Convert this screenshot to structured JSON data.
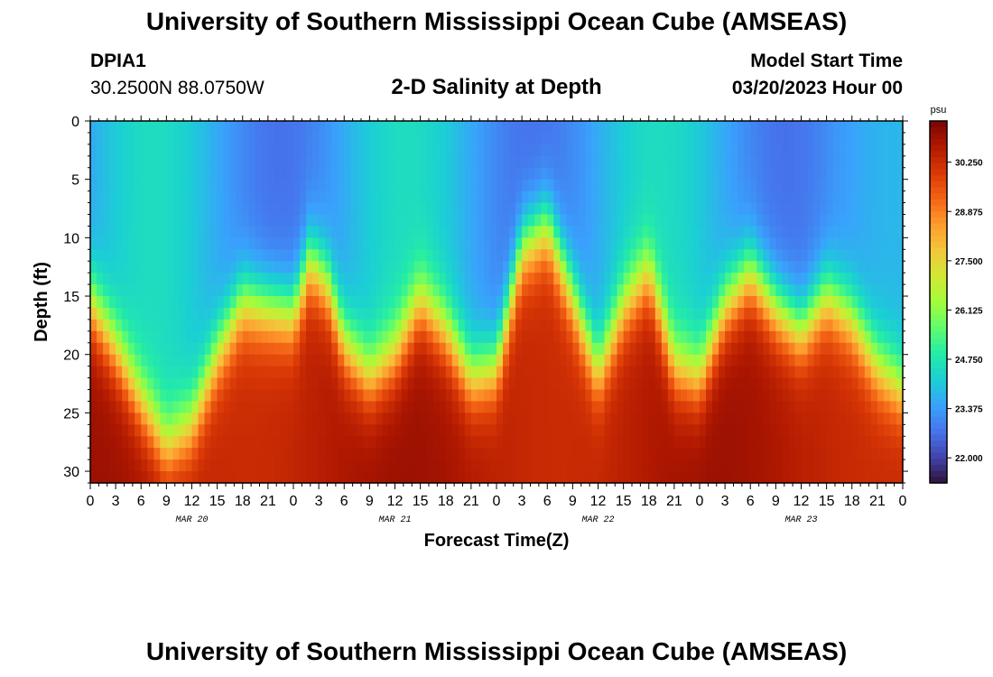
{
  "header": {
    "title": "University of Southern Mississippi Ocean Cube (AMSEAS)",
    "station_id": "DPIA1",
    "station_coords": "30.2500N  88.0750W",
    "plot_title": "2-D Salinity at Depth",
    "model_start_label": "Model Start Time",
    "model_start_value": "03/20/2023 Hour 00"
  },
  "footer": {
    "title": "University of Southern Mississippi Ocean Cube (AMSEAS)"
  },
  "chart_data": {
    "type": "heatmap",
    "title": "2-D Salinity at Depth",
    "xlabel": "Forecast Time(Z)",
    "ylabel": "Depth (ft)",
    "x_tick_labels": [
      "0",
      "3",
      "6",
      "9",
      "12",
      "15",
      "18",
      "21",
      "0",
      "3",
      "6",
      "9",
      "12",
      "15",
      "18",
      "21",
      "0",
      "3",
      "6",
      "9",
      "12",
      "15",
      "18",
      "21",
      "0",
      "3",
      "6",
      "9",
      "12",
      "15",
      "18",
      "21",
      "0"
    ],
    "date_labels": [
      {
        "label": "MAR 20",
        "hour": 12
      },
      {
        "label": "MAR 21",
        "hour": 36
      },
      {
        "label": "MAR 22",
        "hour": 60
      },
      {
        "label": "MAR 23",
        "hour": 84
      }
    ],
    "xlim_hours": [
      0,
      96
    ],
    "y_ticks": [
      0,
      5,
      10,
      15,
      20,
      25,
      30
    ],
    "ylim_ft": [
      0,
      31
    ],
    "colorbar": {
      "unit": "psu",
      "ticks": [
        "30.250",
        "28.875",
        "27.500",
        "26.125",
        "24.750",
        "23.375",
        "22.000"
      ],
      "range": [
        21.3,
        31.4
      ],
      "colors": [
        "#30123b",
        "#4145ab",
        "#4675ed",
        "#39a2fc",
        "#1bcfd4",
        "#24eca6",
        "#61fc6c",
        "#a4fc3b",
        "#d1e834",
        "#f3c63a",
        "#fe9b2d",
        "#f36315",
        "#d93806",
        "#b11901",
        "#7a0403"
      ]
    },
    "halocline_depth_ft": [
      {
        "hour": 0,
        "depth": 15.5
      },
      {
        "hour": 3,
        "depth": 19.5
      },
      {
        "hour": 6,
        "depth": 24
      },
      {
        "hour": 9,
        "depth": 28
      },
      {
        "hour": 12,
        "depth": 26
      },
      {
        "hour": 15,
        "depth": 20
      },
      {
        "hour": 18,
        "depth": 15.5
      },
      {
        "hour": 21,
        "depth": 16
      },
      {
        "hour": 24,
        "depth": 16.5
      },
      {
        "hour": 26,
        "depth": 12
      },
      {
        "hour": 28,
        "depth": 14
      },
      {
        "hour": 30,
        "depth": 19
      },
      {
        "hour": 33,
        "depth": 22
      },
      {
        "hour": 36,
        "depth": 20
      },
      {
        "hour": 39,
        "depth": 15.5
      },
      {
        "hour": 42,
        "depth": 18
      },
      {
        "hour": 45,
        "depth": 22
      },
      {
        "hour": 48,
        "depth": 21
      },
      {
        "hour": 51,
        "depth": 11
      },
      {
        "hour": 54,
        "depth": 9
      },
      {
        "hour": 57,
        "depth": 15
      },
      {
        "hour": 60,
        "depth": 21.5
      },
      {
        "hour": 63,
        "depth": 16
      },
      {
        "hour": 66,
        "depth": 13
      },
      {
        "hour": 69,
        "depth": 21
      },
      {
        "hour": 72,
        "depth": 22
      },
      {
        "hour": 75,
        "depth": 16
      },
      {
        "hour": 78,
        "depth": 13
      },
      {
        "hour": 81,
        "depth": 16
      },
      {
        "hour": 84,
        "depth": 18
      },
      {
        "hour": 87,
        "depth": 15
      },
      {
        "hour": 90,
        "depth": 17
      },
      {
        "hour": 93,
        "depth": 21
      },
      {
        "hour": 96,
        "depth": 23
      }
    ]
  }
}
